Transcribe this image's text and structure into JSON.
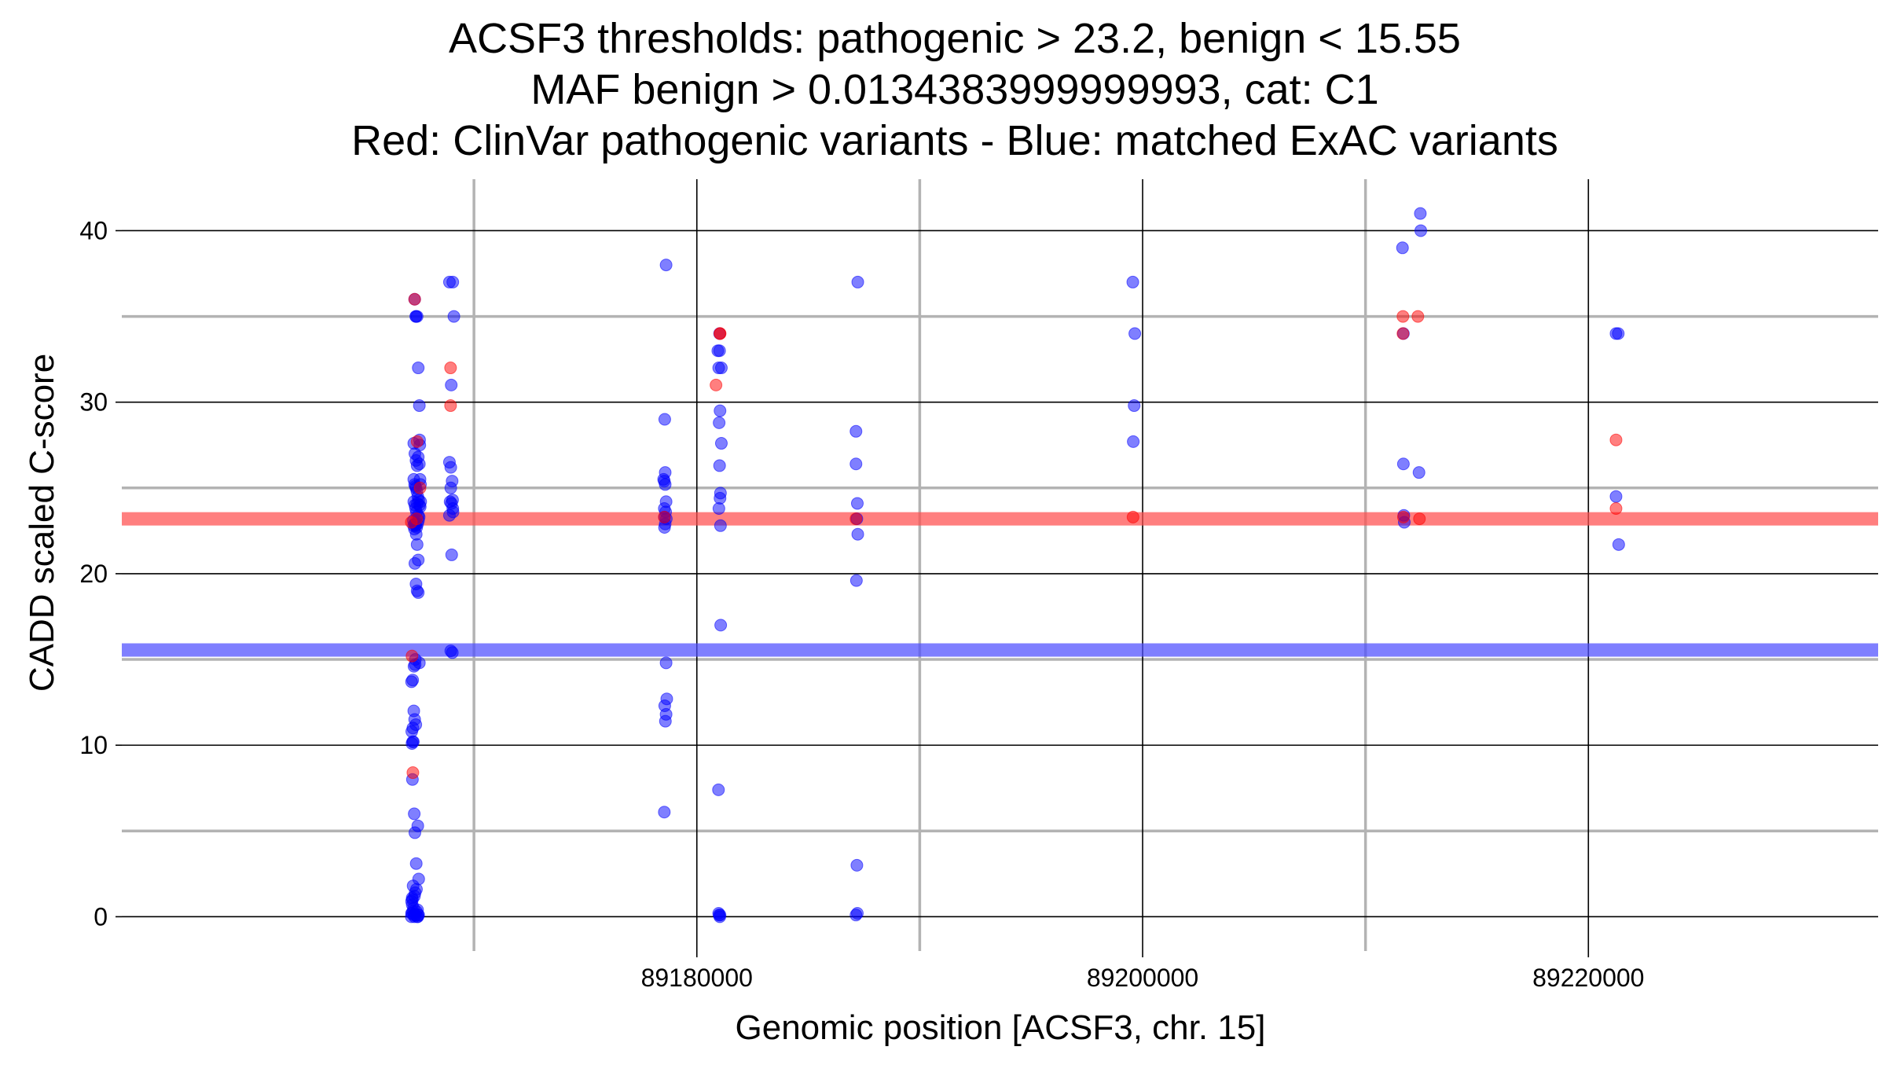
{
  "chart_data": {
    "type": "scatter",
    "title": [
      "ACSF3 thresholds: pathogenic > 23.2, benign < 15.55",
      "MAF benign > 0.0134383999999993, cat: C1",
      "Red: ClinVar pathogenic variants - Blue: matched ExAC variants"
    ],
    "xlabel": "Genomic position [ACSF3, chr. 15]",
    "ylabel": "CADD scaled C-score",
    "xlim": [
      89154200,
      89233000
    ],
    "ylim": [
      -2,
      43
    ],
    "x_major_ticks": [
      89180000,
      89200000,
      89220000
    ],
    "x_major_tick_labels": [
      "89180000",
      "89200000",
      "89220000"
    ],
    "x_minor_gridlines": [
      89170000,
      89190000,
      89210000
    ],
    "y_major_ticks": [
      0,
      10,
      20,
      30,
      40
    ],
    "y_major_tick_labels": [
      "0",
      "10",
      "20",
      "30",
      "40"
    ],
    "y_minor_gridlines": [
      5,
      15,
      25,
      35
    ],
    "thresholds": [
      {
        "name": "pathogenic",
        "value": 23.2,
        "color": "#ff4d4d"
      },
      {
        "name": "benign",
        "value": 15.55,
        "color": "#4d4dff"
      }
    ],
    "colors": {
      "pathogenic": "#ff0000",
      "benign": "#0000ff"
    },
    "series": [
      {
        "name": "ClinVar pathogenic variants",
        "color": "#ff0000",
        "x": [
          89167340,
          89167450,
          89167580,
          89167190,
          89167220,
          89167260,
          89167430,
          89168950,
          89168950,
          89181040,
          89181040,
          89180860,
          89178540,
          89187140,
          89199570,
          89211680,
          89211680,
          89212350,
          89211700,
          89212420,
          89221240,
          89221240
        ],
        "y": [
          36,
          27.7,
          25,
          23,
          15.2,
          8.4,
          23.2,
          32,
          29.8,
          34,
          34,
          31,
          23.3,
          23.2,
          23.3,
          35,
          34,
          35,
          23.3,
          23.2,
          27.8,
          23.8
        ]
      },
      {
        "name": "matched ExAC variants",
        "color": "#0000ff",
        "x": [
          89167340,
          89167390,
          89167400,
          89167450,
          89167500,
          89167550,
          89167560,
          89167570,
          89167300,
          89167350,
          89167400,
          89167450,
          89167500,
          89167550,
          89167580,
          89167600,
          89167300,
          89167340,
          89167370,
          89167400,
          89167440,
          89167480,
          89167520,
          89167560,
          89167590,
          89167610,
          89167300,
          89167350,
          89167380,
          89167420,
          89167460,
          89167500,
          89167540,
          89167280,
          89167330,
          89167390,
          89167430,
          89167470,
          89167510,
          89167290,
          89167330,
          89167370,
          89167410,
          89167450,
          89167500,
          89167350,
          89167400,
          89167450,
          89167500,
          89167370,
          89167550,
          89167310,
          89167360,
          89167200,
          89167250,
          89167300,
          89167340,
          89167390,
          89167260,
          89167210,
          89167250,
          89167280,
          89167220,
          89167240,
          89167320,
          89167480,
          89167350,
          89167410,
          89167520,
          89167270,
          89167420,
          89167330,
          89167360,
          89167240,
          89167200,
          89167230,
          89167470,
          89167220,
          89167300,
          89167460,
          89167510,
          89167190,
          89167260,
          89167330,
          89167380,
          89167420,
          89167480,
          89167510,
          89167200,
          89167230,
          89167290,
          89168900,
          89169050,
          89169100,
          89168980,
          89168900,
          89168960,
          89169020,
          89168960,
          89169040,
          89168930,
          89168990,
          89169050,
          89169060,
          89168900,
          89169000,
          89168960,
          89169030,
          89178620,
          89178560,
          89178580,
          89178510,
          89178540,
          89178580,
          89178620,
          89178540,
          89178600,
          89178550,
          89178630,
          89178580,
          89178550,
          89178620,
          89178650,
          89178560,
          89178620,
          89178590,
          89178540,
          89181020,
          89181020,
          89180940,
          89180980,
          89181100,
          89181040,
          89181000,
          89181100,
          89181020,
          89181060,
          89181040,
          89180990,
          89181060,
          89181070,
          89180970,
          89181040,
          89180980,
          89181000,
          89181030,
          89187220,
          89187140,
          89187140,
          89187200,
          89187180,
          89187220,
          89187160,
          89187180,
          89187140,
          89187200,
          89199560,
          89199650,
          89199620,
          89199580,
          89211660,
          89212460,
          89211700,
          89212480,
          89211700,
          89212400,
          89211720,
          89211740,
          89221240,
          89221340,
          89221240,
          89221360
        ],
        "y": [
          36,
          35,
          35,
          35,
          32,
          29.8,
          27.8,
          27.5,
          27.6,
          27,
          26.6,
          26.3,
          26.8,
          26.4,
          25.5,
          25.2,
          25.5,
          25.2,
          25.1,
          25,
          24.8,
          24.5,
          24.3,
          24,
          23.9,
          24.2,
          24.2,
          24,
          23.8,
          23.6,
          24.1,
          23.4,
          23.3,
          23.1,
          22.9,
          22.8,
          22.7,
          22.9,
          23.1,
          22.8,
          22.6,
          22.9,
          22.3,
          21.7,
          20.8,
          20.6,
          19.4,
          19,
          18.9,
          15,
          14.8,
          14.6,
          14.7,
          13.7,
          13.8,
          12,
          11.5,
          11.2,
          11,
          10.8,
          10.2,
          10.2,
          10.1,
          8,
          6,
          5.3,
          4.9,
          3.1,
          2.2,
          1.8,
          1.6,
          1.2,
          1.4,
          1,
          0.9,
          0.7,
          0.4,
          0.2,
          0.1,
          0,
          0.1,
          0,
          0.3,
          0,
          0.1,
          0.3,
          0,
          0.1,
          0.2,
          1.1,
          0.5,
          37,
          37,
          35,
          31,
          26.5,
          26.2,
          25.4,
          25,
          24.3,
          24.2,
          24.1,
          23.8,
          23.6,
          23.4,
          21.1,
          15.5,
          15.4,
          38,
          29,
          25.9,
          25.5,
          25.4,
          25.2,
          24.2,
          23.8,
          23.6,
          23.3,
          23.2,
          22.9,
          22.7,
          14.8,
          12.7,
          12.3,
          11.8,
          11.4,
          6.1,
          34,
          33,
          33,
          32,
          32,
          29.5,
          28.8,
          27.6,
          26.3,
          24.7,
          24.4,
          23.8,
          22.8,
          17,
          7.4,
          0.1,
          0.2,
          0.1,
          0,
          37,
          28.3,
          26.4,
          24.1,
          23.2,
          22.3,
          19.6,
          3,
          0.1,
          0.2,
          37,
          34,
          29.8,
          27.7,
          39,
          41,
          34,
          40,
          26.4,
          25.9,
          23.4,
          23,
          34,
          34,
          24.5,
          21.7
        ]
      }
    ]
  }
}
